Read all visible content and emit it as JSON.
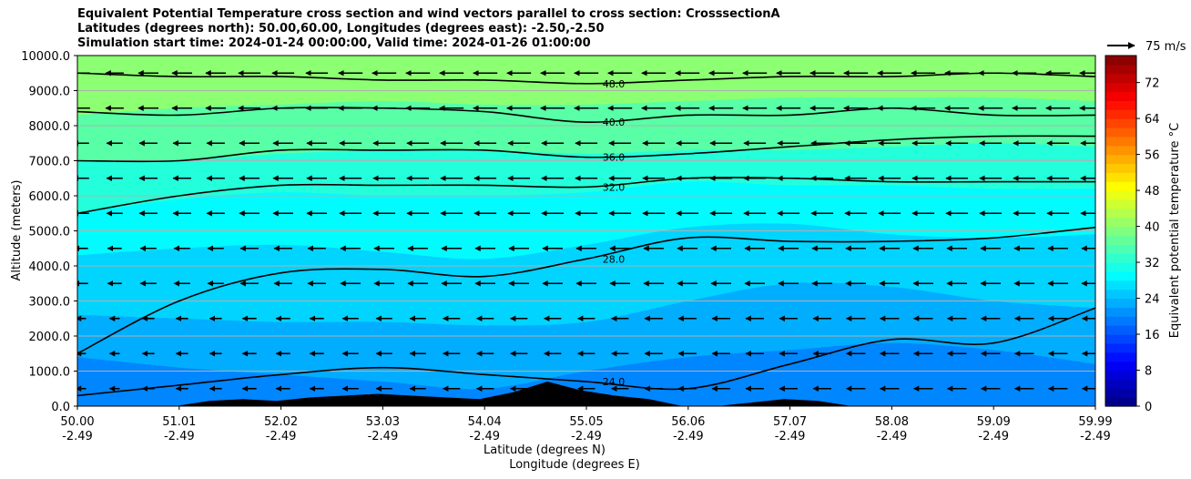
{
  "titles": [
    "Equivalent Potential Temperature cross section and wind vectors parallel to cross section: CrosssectionA",
    "Latitudes (degrees north): 50.00,60.00, Longitudes (degrees east): -2.50,-2.50",
    "Simulation start time: 2024-01-24 00:00:00, Valid time: 2024-01-26 01:00:00"
  ],
  "quiver_key": {
    "label": "75 m/s"
  },
  "chart_data": {
    "type": "heatmap",
    "xlabel_1": "Latitude (degrees N)",
    "xlabel_2": "Longitude (degrees E)",
    "ylabel": "Altitude (meters)",
    "colorbar_label": "Equivalent potential temperature °C",
    "ylim": [
      0,
      10000
    ],
    "clim": [
      0,
      78
    ],
    "y_ticks": [
      0,
      1000,
      2000,
      3000,
      4000,
      5000,
      6000,
      7000,
      8000,
      9000,
      10000
    ],
    "y_tick_labels": [
      "0.0",
      "1000.0",
      "2000.0",
      "3000.0",
      "4000.0",
      "5000.0",
      "6000.0",
      "7000.0",
      "8000.0",
      "9000.0",
      "10000.0"
    ],
    "x_tick_lat": [
      "50.00",
      "51.01",
      "52.02",
      "53.03",
      "54.04",
      "55.05",
      "56.06",
      "57.07",
      "58.08",
      "59.09",
      "59.99"
    ],
    "x_tick_lon": [
      "-2.49",
      "-2.49",
      "-2.49",
      "-2.49",
      "-2.49",
      "-2.49",
      "-2.49",
      "-2.49",
      "-2.49",
      "-2.49",
      "-2.49"
    ],
    "colorbar_ticks": [
      0,
      8,
      16,
      24,
      32,
      40,
      48,
      56,
      64,
      72
    ],
    "grid": true,
    "colormap": [
      "#00007f",
      "#0000ff",
      "#007fff",
      "#00ffff",
      "#7fff7f",
      "#ffff00",
      "#ff7f00",
      "#ff0000",
      "#7f0000"
    ],
    "bands": [
      {
        "value": 23,
        "y": [
          1400,
          1100,
          900,
          700,
          500,
          1000,
          1400,
          1600,
          1800,
          1600,
          1200
        ]
      },
      {
        "value": 26,
        "y": [
          2600,
          2500,
          2400,
          2400,
          2300,
          2400,
          3000,
          3500,
          3400,
          3000,
          2800
        ]
      },
      {
        "value": 29,
        "y": [
          4300,
          4500,
          4600,
          4400,
          4200,
          4600,
          5100,
          5200,
          4900,
          4800,
          4900
        ]
      },
      {
        "value": 32,
        "y": [
          5500,
          5900,
          6100,
          6000,
          6000,
          6100,
          6400,
          6300,
          6300,
          6200,
          6200
        ]
      },
      {
        "value": 36,
        "y": [
          7000,
          7000,
          7200,
          7300,
          7300,
          7200,
          7300,
          7300,
          7400,
          7500,
          7400
        ]
      },
      {
        "value": 40,
        "y": [
          8300,
          8500,
          8600,
          8700,
          8600,
          8600,
          8700,
          8800,
          8800,
          8800,
          8700
        ]
      },
      {
        "value": 46,
        "y": [
          10000,
          10000,
          10000,
          10000,
          10000,
          10000,
          10000,
          10000,
          10000,
          10000,
          10000
        ]
      }
    ],
    "contours": [
      {
        "label": "28.0",
        "y": [
          1500,
          3000,
          3800,
          3900,
          3700,
          4200,
          4800,
          4700,
          4700,
          4800,
          5100
        ]
      },
      {
        "label": "32.0",
        "y": [
          5500,
          6000,
          6300,
          6300,
          6300,
          6250,
          6500,
          6500,
          6400,
          6400,
          6400
        ]
      },
      {
        "label": "36.0",
        "y": [
          7000,
          7000,
          7300,
          7300,
          7300,
          7100,
          7200,
          7400,
          7600,
          7700,
          7700
        ]
      },
      {
        "label": "40.0",
        "y": [
          8400,
          8300,
          8500,
          8500,
          8400,
          8100,
          8300,
          8300,
          8500,
          8300,
          8300
        ]
      },
      {
        "label": "48.0",
        "y": [
          9500,
          9400,
          9400,
          9300,
          9300,
          9200,
          9300,
          9400,
          9400,
          9500,
          9400
        ]
      },
      {
        "label": "24.0",
        "y": [
          300,
          600,
          900,
          1100,
          900,
          700,
          500,
          1200,
          1900,
          1800,
          2800
        ]
      }
    ],
    "wind_u": [
      [
        -10,
        -12,
        -14,
        -16,
        -17,
        -17,
        -18,
        -18,
        -19,
        -19,
        -19
      ],
      [
        -14,
        -16,
        -18,
        -20,
        -20,
        -20,
        -20,
        -20,
        -20,
        -20,
        -20
      ],
      [
        -16,
        -18,
        -20,
        -22,
        -22,
        -22,
        -22,
        -22,
        -22,
        -22,
        -22
      ],
      [
        -18,
        -20,
        -22,
        -24,
        -24,
        -24,
        -24,
        -24,
        -24,
        -24,
        -24
      ]
    ],
    "terrain": [
      0,
      0,
      150,
      200,
      150,
      250,
      300,
      350,
      300,
      250,
      200,
      400,
      700,
      450,
      300,
      200,
      0,
      0,
      100,
      200,
      150,
      0,
      0
    ]
  }
}
